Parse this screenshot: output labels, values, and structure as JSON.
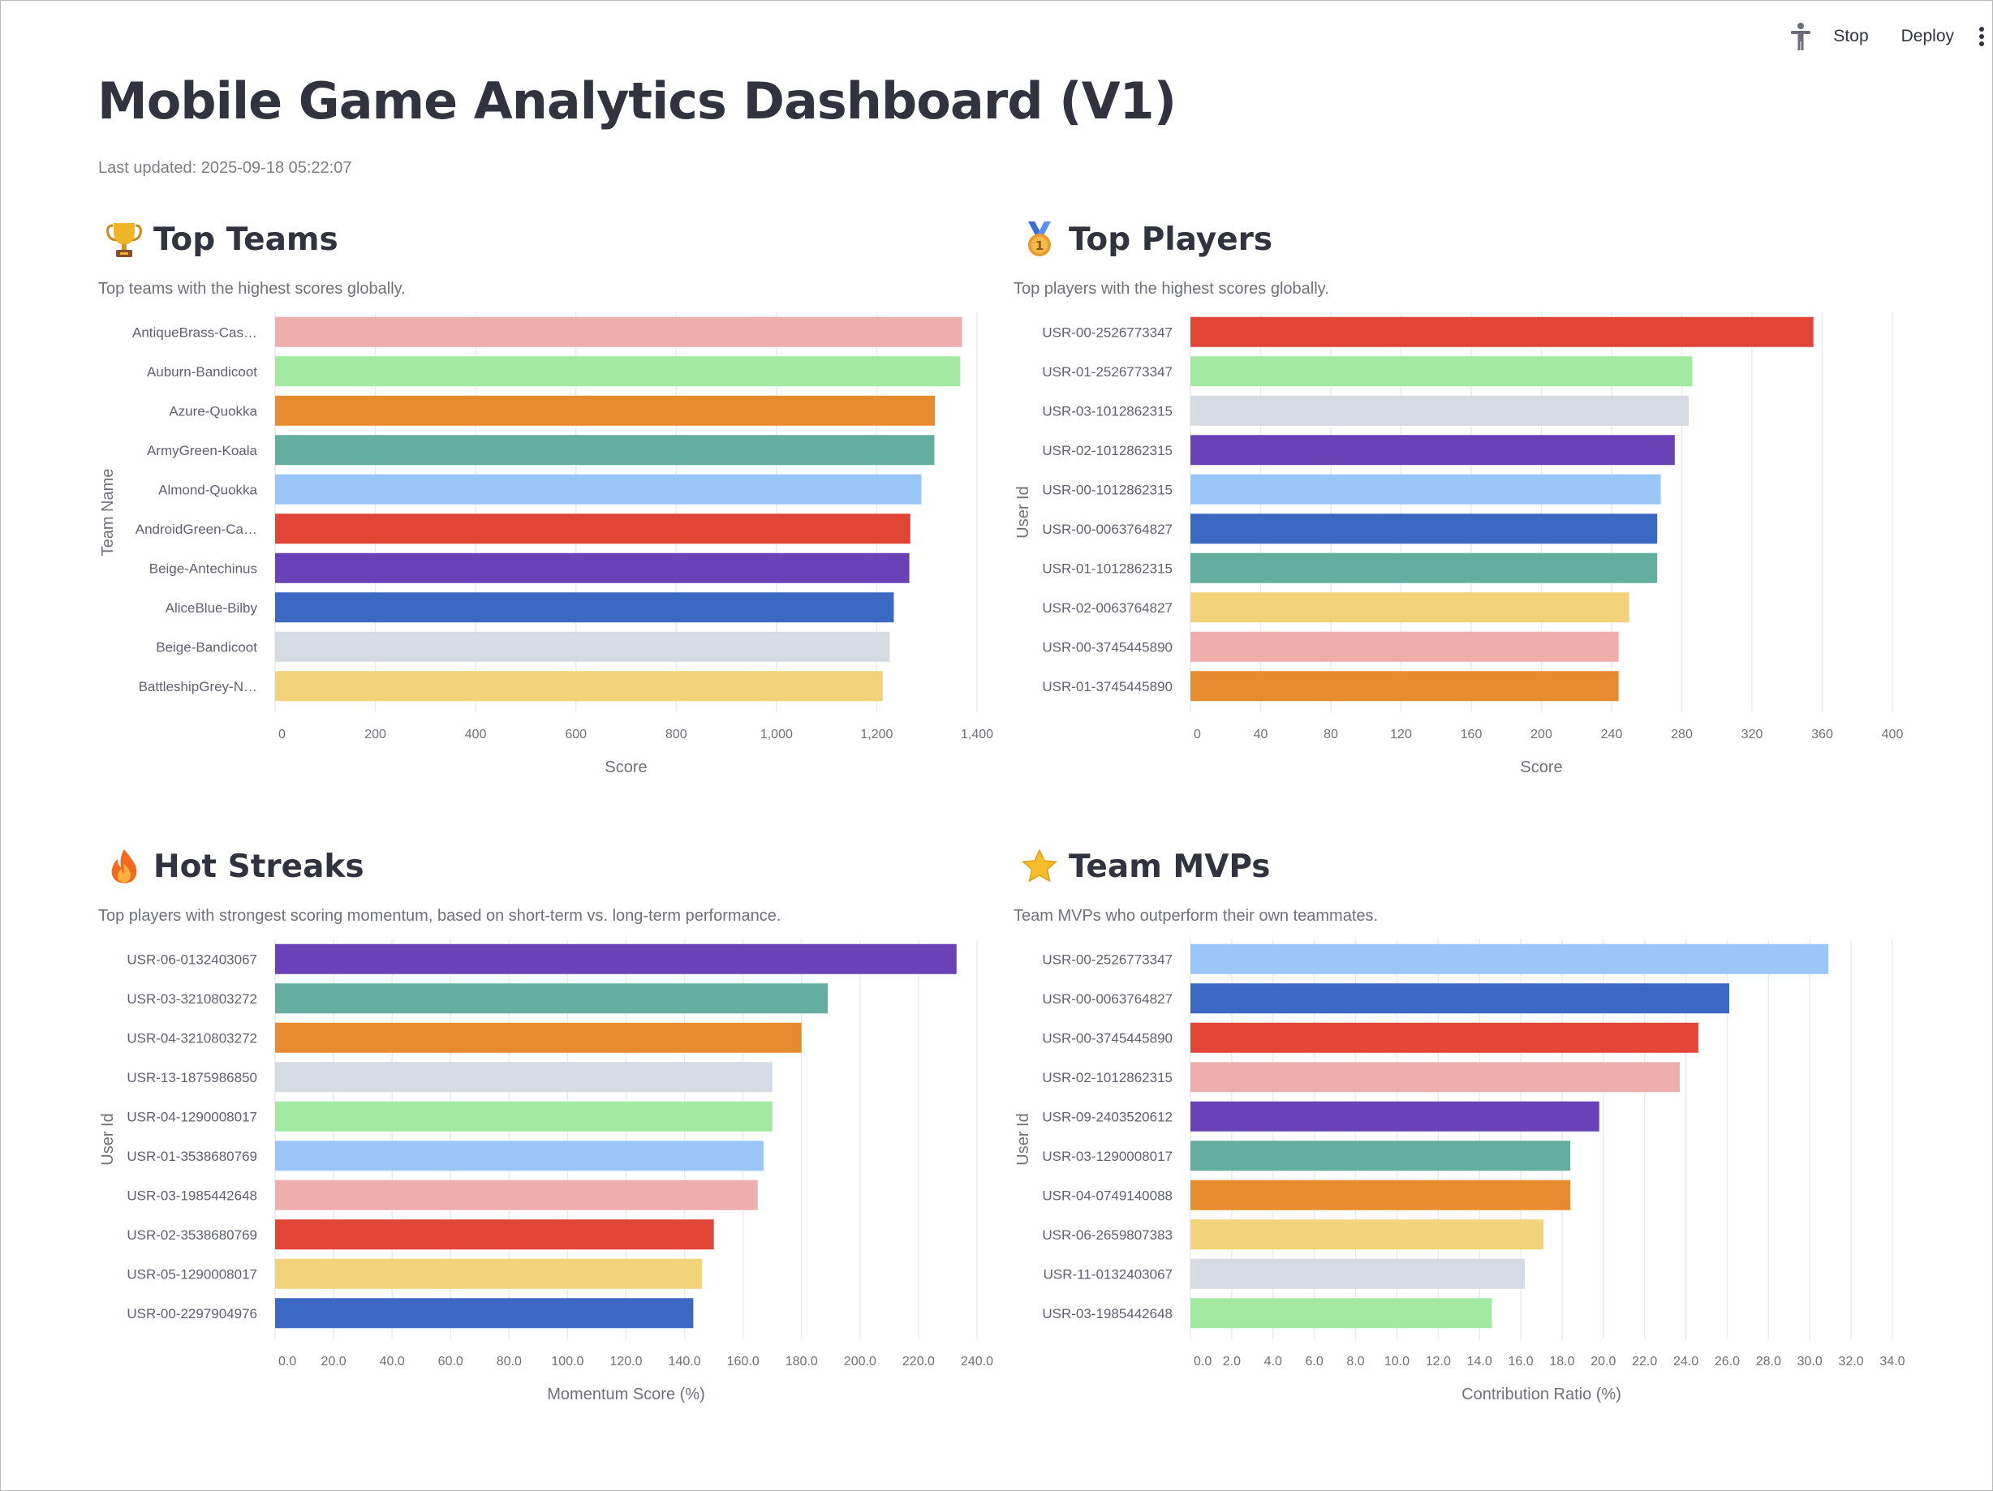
{
  "toolbar": {
    "stop_label": "Stop",
    "deploy_label": "Deploy"
  },
  "page": {
    "title": "Mobile Game Analytics Dashboard (V1)",
    "last_updated": "Last updated: 2025-09-18 05:22:07"
  },
  "sections": {
    "top_teams": {
      "title": "Top Teams",
      "description": "Top teams with the highest scores globally.",
      "icon": "trophy-icon"
    },
    "top_players": {
      "title": "Top Players",
      "description": "Top players with the highest scores globally.",
      "icon": "medal-icon"
    },
    "hot_streaks": {
      "title": "Hot Streaks",
      "description": "Top players with strongest scoring momentum, based on short-term vs. long-term performance.",
      "icon": "fire-icon"
    },
    "team_mvps": {
      "title": "Team MVPs",
      "description": "Team MVPs who outperform their own teammates.",
      "icon": "star-icon"
    }
  },
  "chart_data": [
    {
      "id": "top_teams",
      "type": "bar",
      "orientation": "horizontal",
      "categories": [
        "AntiqueBrass-Cas…",
        "Auburn-Bandicoot",
        "Azure-Quokka",
        "ArmyGreen-Koala",
        "Almond-Quokka",
        "AndroidGreen-Ca…",
        "Beige-Antechinus",
        "AliceBlue-Bilby",
        "Beige-Bandicoot",
        "BattleshipGrey-N…"
      ],
      "values": [
        1370,
        1366,
        1316,
        1315,
        1289,
        1267,
        1265,
        1234,
        1226,
        1212
      ],
      "colors": [
        "#eeaeac",
        "#a2eaa2",
        "#e78b2f",
        "#63ae9e",
        "#9ac7f8",
        "#e04535",
        "#6942b8",
        "#3a68c3",
        "#d6dae3",
        "#f2d379"
      ],
      "xlabel": "Score",
      "ylabel": "Team Name",
      "xlim": [
        0,
        1400
      ],
      "ticks": [
        0,
        200,
        400,
        600,
        800,
        1000,
        1200,
        1400
      ],
      "tick_labels": [
        "0",
        "200",
        "400",
        "600",
        "800",
        "1,000",
        "1,200",
        "1,400"
      ],
      "grid": true
    },
    {
      "id": "top_players",
      "type": "bar",
      "orientation": "horizontal",
      "categories": [
        "USR-00-2526773347",
        "USR-01-2526773347",
        "USR-03-1012862315",
        "USR-02-1012862315",
        "USR-00-1012862315",
        "USR-00-0063764827",
        "USR-01-1012862315",
        "USR-02-0063764827",
        "USR-00-3745445890",
        "USR-01-3745445890"
      ],
      "values": [
        355,
        286,
        284,
        276,
        268,
        266,
        266,
        250,
        244,
        244
      ],
      "colors": [
        "#e04535",
        "#a2eaa2",
        "#d6dae3",
        "#6942b8",
        "#9ac7f8",
        "#3a68c3",
        "#63ae9e",
        "#f2d379",
        "#eeaeac",
        "#e78b2f"
      ],
      "xlabel": "Score",
      "ylabel": "User Id",
      "xlim": [
        0,
        400
      ],
      "ticks": [
        0,
        40,
        80,
        120,
        160,
        200,
        240,
        280,
        320,
        360,
        400
      ],
      "tick_labels": [
        "0",
        "40",
        "80",
        "120",
        "160",
        "200",
        "240",
        "280",
        "320",
        "360",
        "400"
      ],
      "grid": true
    },
    {
      "id": "hot_streaks",
      "type": "bar",
      "orientation": "horizontal",
      "categories": [
        "USR-06-0132403067",
        "USR-03-3210803272",
        "USR-04-3210803272",
        "USR-13-1875986850",
        "USR-04-1290008017",
        "USR-01-3538680769",
        "USR-03-1985442648",
        "USR-02-3538680769",
        "USR-05-1290008017",
        "USR-00-2297904976"
      ],
      "values": [
        233,
        189,
        180,
        170,
        170,
        167,
        165,
        150,
        146,
        143
      ],
      "colors": [
        "#6942b8",
        "#63ae9e",
        "#e78b2f",
        "#d6dae3",
        "#a2eaa2",
        "#9ac7f8",
        "#eeaeac",
        "#e04535",
        "#f2d379",
        "#3a68c3"
      ],
      "xlabel": "Momentum Score (%)",
      "ylabel": "User Id",
      "xlim": [
        0,
        240
      ],
      "ticks": [
        0,
        20,
        40,
        60,
        80,
        100,
        120,
        140,
        160,
        180,
        200,
        220,
        240
      ],
      "tick_labels": [
        "0.0",
        "20.0",
        "40.0",
        "60.0",
        "80.0",
        "100.0",
        "120.0",
        "140.0",
        "160.0",
        "180.0",
        "200.0",
        "220.0",
        "240.0"
      ],
      "grid": true
    },
    {
      "id": "team_mvps",
      "type": "bar",
      "orientation": "horizontal",
      "categories": [
        "USR-00-2526773347",
        "USR-00-0063764827",
        "USR-00-3745445890",
        "USR-02-1012862315",
        "USR-09-2403520612",
        "USR-03-1290008017",
        "USR-04-0749140088",
        "USR-06-2659807383",
        "USR-11-0132403067",
        "USR-03-1985442648"
      ],
      "values": [
        30.9,
        26.1,
        24.6,
        23.7,
        19.8,
        18.4,
        18.4,
        17.1,
        16.2,
        14.6
      ],
      "colors": [
        "#9ac7f8",
        "#3a68c3",
        "#e04535",
        "#eeaeac",
        "#6942b8",
        "#63ae9e",
        "#e78b2f",
        "#f2d379",
        "#d6dae3",
        "#a2eaa2"
      ],
      "xlabel": "Contribution Ratio (%)",
      "ylabel": "User Id",
      "xlim": [
        0,
        34
      ],
      "ticks": [
        0,
        2,
        4,
        6,
        8,
        10,
        12,
        14,
        16,
        18,
        20,
        22,
        24,
        26,
        28,
        30,
        32,
        34
      ],
      "tick_labels": [
        "0.0",
        "2.0",
        "4.0",
        "6.0",
        "8.0",
        "10.0",
        "12.0",
        "14.0",
        "16.0",
        "18.0",
        "20.0",
        "22.0",
        "24.0",
        "26.0",
        "28.0",
        "30.0",
        "32.0",
        "34.0"
      ],
      "grid": true
    }
  ]
}
